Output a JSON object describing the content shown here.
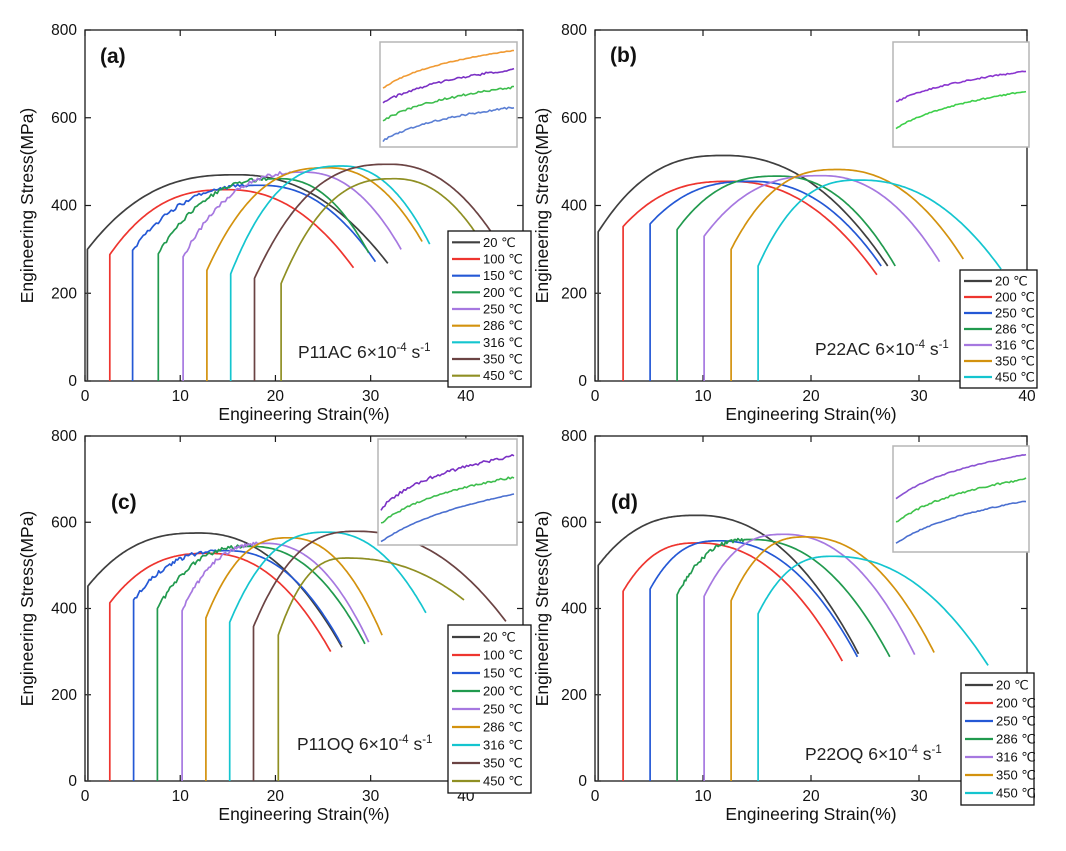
{
  "figure": {
    "background": "#ffffff"
  },
  "chart_data": {
    "type": "line",
    "description": "Engineering stress-strain curves at different temperatures, 4 panels",
    "shared": {
      "xlabel": "Engineering Strain(%)",
      "ylabel": "Engineering Stress(MPa)",
      "x_ticks": [
        0,
        10,
        20,
        30,
        40
      ],
      "y_ticks": [
        0,
        200,
        400,
        600,
        800
      ],
      "ylim": [
        0,
        800
      ]
    },
    "panels": [
      {
        "id": "a",
        "letter": "(a)",
        "condition_parts": [
          "P11AC 6×10",
          "-4",
          " s",
          "-1"
        ],
        "xlim": [
          0,
          46
        ],
        "legend": [
          {
            "label": "20 ℃",
            "color": "#3f3f3f"
          },
          {
            "label": "100 ℃",
            "color": "#ee352f"
          },
          {
            "label": "150 ℃",
            "color": "#2458d5"
          },
          {
            "label": "200 ℃",
            "color": "#219a4e"
          },
          {
            "label": "250 ℃",
            "color": "#a678e0"
          },
          {
            "label": "286 ℃",
            "color": "#d3920e"
          },
          {
            "label": "316 ℃",
            "color": "#14c5cf"
          },
          {
            "label": "350 ℃",
            "color": "#6b4343"
          },
          {
            "label": "450 ℃",
            "color": "#8f8f23"
          }
        ],
        "curves": [
          {
            "name": "20 ℃",
            "color": "#3f3f3f",
            "x_onset": 0.25,
            "y_rise": 300,
            "x_peak": 16.0,
            "y_peak": 470,
            "x_end": 31.8,
            "y_end": 268,
            "jagged": false
          },
          {
            "name": "100 ℃",
            "color": "#ee352f",
            "x_onset": 2.6,
            "y_rise": 288,
            "x_peak": 15.0,
            "y_peak": 436,
            "x_end": 28.2,
            "y_end": 258,
            "jagged": false
          },
          {
            "name": "150 ℃",
            "color": "#2458d5",
            "x_onset": 5.0,
            "y_rise": 298,
            "x_peak": 18.5,
            "y_peak": 446,
            "x_end": 30.5,
            "y_end": 272,
            "jagged": true
          },
          {
            "name": "200 ℃",
            "color": "#219a4e",
            "x_onset": 7.7,
            "y_rise": 290,
            "x_peak": 20.5,
            "y_peak": 461,
            "x_end": 29.8,
            "y_end": 292,
            "jagged": true
          },
          {
            "name": "250 ℃",
            "color": "#a678e0",
            "x_onset": 10.3,
            "y_rise": 283,
            "x_peak": 23.0,
            "y_peak": 476,
            "x_end": 33.2,
            "y_end": 300,
            "jagged": true
          },
          {
            "name": "286 ℃",
            "color": "#d3920e",
            "x_onset": 12.8,
            "y_rise": 252,
            "x_peak": 25.5,
            "y_peak": 486,
            "x_end": 35.4,
            "y_end": 318,
            "jagged": false
          },
          {
            "name": "316 ℃",
            "color": "#14c5cf",
            "x_onset": 15.3,
            "y_rise": 244,
            "x_peak": 27.0,
            "y_peak": 490,
            "x_end": 36.2,
            "y_end": 312,
            "jagged": false
          },
          {
            "name": "350 ℃",
            "color": "#6b4343",
            "x_onset": 17.8,
            "y_rise": 234,
            "x_peak": 32.0,
            "y_peak": 494,
            "x_end": 45.0,
            "y_end": 255,
            "jagged": false
          },
          {
            "name": "450 ℃",
            "color": "#8f8f23",
            "x_onset": 20.6,
            "y_rise": 222,
            "x_peak": 32.5,
            "y_peak": 461,
            "x_end": 43.5,
            "y_end": 245,
            "jagged": false
          }
        ],
        "inset_curves": [
          {
            "color": "#f09a33",
            "start": 0.44,
            "end": 0.08,
            "bend": 4.0,
            "jitter": 0.4
          },
          {
            "color": "#7a30c4",
            "start": 0.58,
            "end": 0.26,
            "bend": 3.5,
            "jitter": 1.1
          },
          {
            "color": "#3dbd4d",
            "start": 0.75,
            "end": 0.43,
            "bend": 3.5,
            "jitter": 1.0
          },
          {
            "color": "#5b7fd4",
            "start": 0.94,
            "end": 0.62,
            "bend": 3.5,
            "jitter": 1.0
          }
        ]
      },
      {
        "id": "b",
        "letter": "(b)",
        "condition_parts": [
          "P22AC 6×10",
          "-4",
          " s",
          "-1"
        ],
        "xlim": [
          0,
          40
        ],
        "legend": [
          {
            "label": "20 ℃",
            "color": "#3f3f3f"
          },
          {
            "label": "200 ℃",
            "color": "#ee352f"
          },
          {
            "label": "250 ℃",
            "color": "#2458d5"
          },
          {
            "label": "286 ℃",
            "color": "#219a4e"
          },
          {
            "label": "316 ℃",
            "color": "#a678e0"
          },
          {
            "label": "350 ℃",
            "color": "#d3920e"
          },
          {
            "label": "450 ℃",
            "color": "#14c5cf"
          }
        ],
        "curves": [
          {
            "name": "20 ℃",
            "color": "#3f3f3f",
            "x_onset": 0.3,
            "y_rise": 340,
            "x_peak": 12.0,
            "y_peak": 514,
            "x_end": 27.1,
            "y_end": 262,
            "jagged": false
          },
          {
            "name": "200 ℃",
            "color": "#ee352f",
            "x_onset": 2.6,
            "y_rise": 352,
            "x_peak": 12.5,
            "y_peak": 455,
            "x_end": 26.1,
            "y_end": 242,
            "jagged": false
          },
          {
            "name": "250 ℃",
            "color": "#2458d5",
            "x_onset": 5.1,
            "y_rise": 358,
            "x_peak": 14.5,
            "y_peak": 455,
            "x_end": 26.5,
            "y_end": 262,
            "jagged": false
          },
          {
            "name": "286 ℃",
            "color": "#219a4e",
            "x_onset": 7.6,
            "y_rise": 345,
            "x_peak": 17.0,
            "y_peak": 467,
            "x_end": 27.8,
            "y_end": 262,
            "jagged": false
          },
          {
            "name": "316 ℃",
            "color": "#a678e0",
            "x_onset": 10.1,
            "y_rise": 330,
            "x_peak": 21.0,
            "y_peak": 468,
            "x_end": 31.9,
            "y_end": 272,
            "jagged": false
          },
          {
            "name": "350 ℃",
            "color": "#d3920e",
            "x_onset": 12.6,
            "y_rise": 300,
            "x_peak": 22.5,
            "y_peak": 482,
            "x_end": 34.1,
            "y_end": 278,
            "jagged": false
          },
          {
            "name": "450 ℃",
            "color": "#14c5cf",
            "x_onset": 15.1,
            "y_rise": 262,
            "x_peak": 24.5,
            "y_peak": 458,
            "x_end": 37.6,
            "y_end": 255,
            "jagged": false
          }
        ],
        "inset_curves": [
          {
            "color": "#8a36cf",
            "start": 0.57,
            "end": 0.28,
            "bend": 3.0,
            "jitter": 0.7
          },
          {
            "color": "#3ecf4a",
            "start": 0.82,
            "end": 0.47,
            "bend": 3.0,
            "jitter": 0.7
          }
        ]
      },
      {
        "id": "c",
        "letter": "(c)",
        "condition_parts": [
          "P11OQ 6×10",
          "-4",
          " s",
          "-1"
        ],
        "xlim": [
          0,
          46
        ],
        "legend": [
          {
            "label": "20 ℃",
            "color": "#3f3f3f"
          },
          {
            "label": "100 ℃",
            "color": "#ee352f"
          },
          {
            "label": "150 ℃",
            "color": "#2458d5"
          },
          {
            "label": "200 ℃",
            "color": "#219a4e"
          },
          {
            "label": "250 ℃",
            "color": "#a678e0"
          },
          {
            "label": "286 ℃",
            "color": "#d3920e"
          },
          {
            "label": "316 ℃",
            "color": "#14c5cf"
          },
          {
            "label": "350 ℃",
            "color": "#6b4343"
          },
          {
            "label": "450 ℃",
            "color": "#8f8f23"
          }
        ],
        "curves": [
          {
            "name": "20 ℃",
            "color": "#3f3f3f",
            "x_onset": 0.3,
            "y_rise": 452,
            "x_peak": 12.0,
            "y_peak": 575,
            "x_end": 27.0,
            "y_end": 310,
            "jagged": false
          },
          {
            "name": "100 ℃",
            "color": "#ee352f",
            "x_onset": 2.6,
            "y_rise": 413,
            "x_peak": 13.0,
            "y_peak": 528,
            "x_end": 25.8,
            "y_end": 300,
            "jagged": false
          },
          {
            "name": "150 ℃",
            "color": "#2458d5",
            "x_onset": 5.1,
            "y_rise": 420,
            "x_peak": 15.0,
            "y_peak": 534,
            "x_end": 26.9,
            "y_end": 318,
            "jagged": true
          },
          {
            "name": "200 ℃",
            "color": "#219a4e",
            "x_onset": 7.6,
            "y_rise": 400,
            "x_peak": 17.5,
            "y_peak": 544,
            "x_end": 29.4,
            "y_end": 318,
            "jagged": true
          },
          {
            "name": "250 ℃",
            "color": "#a678e0",
            "x_onset": 10.2,
            "y_rise": 395,
            "x_peak": 19.0,
            "y_peak": 551,
            "x_end": 29.8,
            "y_end": 322,
            "jagged": true
          },
          {
            "name": "286 ℃",
            "color": "#d3920e",
            "x_onset": 12.7,
            "y_rise": 378,
            "x_peak": 21.5,
            "y_peak": 564,
            "x_end": 31.2,
            "y_end": 338,
            "jagged": false
          },
          {
            "name": "316 ℃",
            "color": "#14c5cf",
            "x_onset": 15.2,
            "y_rise": 368,
            "x_peak": 25.5,
            "y_peak": 577,
            "x_end": 35.8,
            "y_end": 390,
            "jagged": false
          },
          {
            "name": "350 ℃",
            "color": "#6b4343",
            "x_onset": 17.7,
            "y_rise": 358,
            "x_peak": 28.5,
            "y_peak": 579,
            "x_end": 44.2,
            "y_end": 370,
            "jagged": false
          },
          {
            "name": "450 ℃",
            "color": "#8f8f23",
            "x_onset": 20.3,
            "y_rise": 338,
            "x_peak": 27.5,
            "y_peak": 517,
            "x_end": 39.8,
            "y_end": 420,
            "jagged": false
          }
        ],
        "inset_curves": [
          {
            "color": "#7a30c4",
            "start": 0.66,
            "end": 0.16,
            "bend": 5.0,
            "jitter": 1.5
          },
          {
            "color": "#3dbd4d",
            "start": 0.8,
            "end": 0.36,
            "bend": 4.0,
            "jitter": 1.0
          },
          {
            "color": "#4a6fd0",
            "start": 0.97,
            "end": 0.52,
            "bend": 2.5,
            "jitter": 0.3
          }
        ]
      },
      {
        "id": "d",
        "letter": "(d)",
        "condition_parts": [
          "P22OQ 6×10",
          "-4",
          " s",
          "-1"
        ],
        "xlim": [
          0,
          40
        ],
        "legend": [
          {
            "label": "20 ℃",
            "color": "#3f3f3f"
          },
          {
            "label": "200 ℃",
            "color": "#ee352f"
          },
          {
            "label": "250 ℃",
            "color": "#2458d5"
          },
          {
            "label": "286 ℃",
            "color": "#219a4e"
          },
          {
            "label": "316 ℃",
            "color": "#a678e0"
          },
          {
            "label": "350 ℃",
            "color": "#d3920e"
          },
          {
            "label": "450 ℃",
            "color": "#14c5cf"
          }
        ],
        "curves": [
          {
            "name": "20 ℃",
            "color": "#3f3f3f",
            "x_onset": 0.3,
            "y_rise": 500,
            "x_peak": 9.5,
            "y_peak": 616,
            "x_end": 24.4,
            "y_end": 295,
            "jagged": false
          },
          {
            "name": "200 ℃",
            "color": "#ee352f",
            "x_onset": 2.6,
            "y_rise": 440,
            "x_peak": 9.5,
            "y_peak": 552,
            "x_end": 22.9,
            "y_end": 278,
            "jagged": false
          },
          {
            "name": "250 ℃",
            "color": "#2458d5",
            "x_onset": 5.1,
            "y_rise": 445,
            "x_peak": 11.5,
            "y_peak": 557,
            "x_end": 24.3,
            "y_end": 288,
            "jagged": false
          },
          {
            "name": "286 ℃",
            "color": "#219a4e",
            "x_onset": 7.6,
            "y_rise": 432,
            "x_peak": 14.5,
            "y_peak": 560,
            "x_end": 27.3,
            "y_end": 288,
            "jagged": true
          },
          {
            "name": "316 ℃",
            "color": "#a678e0",
            "x_onset": 10.1,
            "y_rise": 428,
            "x_peak": 17.5,
            "y_peak": 572,
            "x_end": 29.6,
            "y_end": 293,
            "jagged": false
          },
          {
            "name": "350 ℃",
            "color": "#d3920e",
            "x_onset": 12.6,
            "y_rise": 418,
            "x_peak": 19.5,
            "y_peak": 566,
            "x_end": 31.4,
            "y_end": 298,
            "jagged": false
          },
          {
            "name": "450 ℃",
            "color": "#14c5cf",
            "x_onset": 15.1,
            "y_rise": 388,
            "x_peak": 22.0,
            "y_peak": 521,
            "x_end": 36.4,
            "y_end": 268,
            "jagged": false
          }
        ],
        "inset_curves": [
          {
            "color": "#8a52d2",
            "start": 0.5,
            "end": 0.08,
            "bend": 3.5,
            "jitter": 0.4
          },
          {
            "color": "#3ec24a",
            "start": 0.72,
            "end": 0.31,
            "bend": 3.5,
            "jitter": 0.9
          },
          {
            "color": "#4a6fd0",
            "start": 0.92,
            "end": 0.52,
            "bend": 3.0,
            "jitter": 0.5
          }
        ]
      }
    ]
  }
}
